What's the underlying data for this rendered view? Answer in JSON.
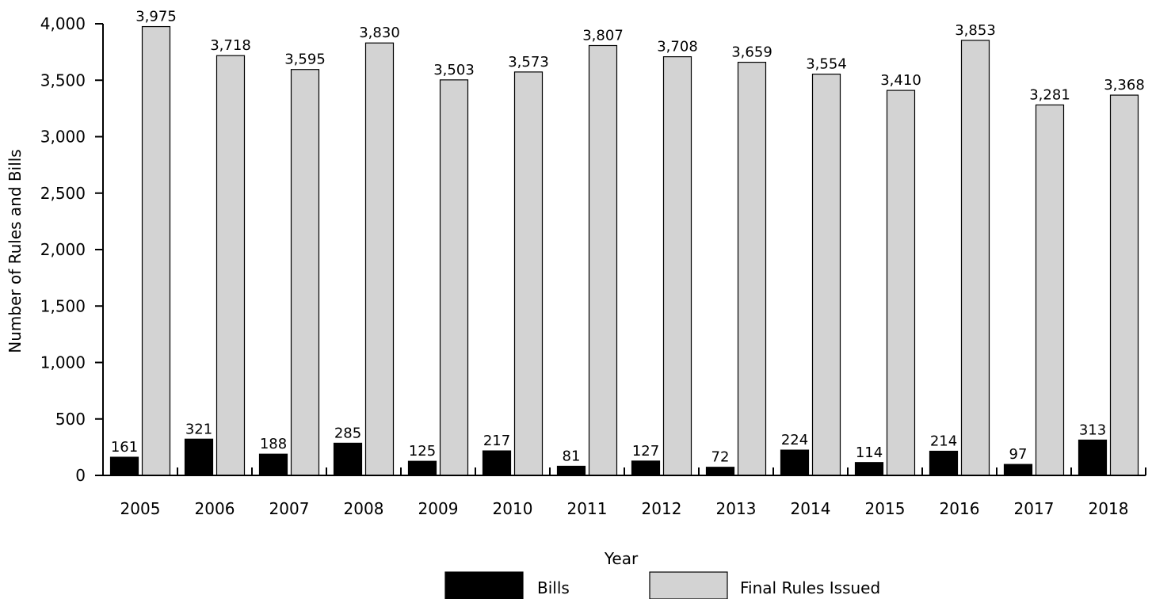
{
  "chart_data": {
    "type": "bar",
    "title": "",
    "xlabel": "Year",
    "ylabel": "Number of Rules and Bills",
    "ylim": [
      0,
      4000
    ],
    "yticks": [
      0,
      500,
      1000,
      1500,
      2000,
      2500,
      3000,
      3500,
      4000
    ],
    "ytick_labels": [
      "0",
      "500",
      "1,000",
      "1,500",
      "2,000",
      "2,500",
      "3,000",
      "3,500",
      "4,000"
    ],
    "categories": [
      "2005",
      "2006",
      "2007",
      "2008",
      "2009",
      "2010",
      "2011",
      "2012",
      "2013",
      "2014",
      "2015",
      "2016",
      "2017",
      "2018"
    ],
    "series": [
      {
        "name": "Bills",
        "color": "#000000",
        "values": [
          161,
          321,
          188,
          285,
          125,
          217,
          81,
          127,
          72,
          224,
          114,
          214,
          97,
          313
        ],
        "labels": [
          "161",
          "321",
          "188",
          "285",
          "125",
          "217",
          "81",
          "127",
          "72",
          "224",
          "114",
          "214",
          "97",
          "313"
        ]
      },
      {
        "name": "Final Rules Issued",
        "color": "#d3d3d3",
        "values": [
          3975,
          3718,
          3595,
          3830,
          3503,
          3573,
          3807,
          3708,
          3659,
          3554,
          3410,
          3853,
          3281,
          3368
        ],
        "labels": [
          "3,975",
          "3,718",
          "3,595",
          "3,830",
          "3,503",
          "3,573",
          "3,807",
          "3,708",
          "3,659",
          "3,554",
          "3,410",
          "3,853",
          "3,281",
          "3,368"
        ]
      }
    ],
    "grid": false,
    "legend_position": "bottom"
  }
}
